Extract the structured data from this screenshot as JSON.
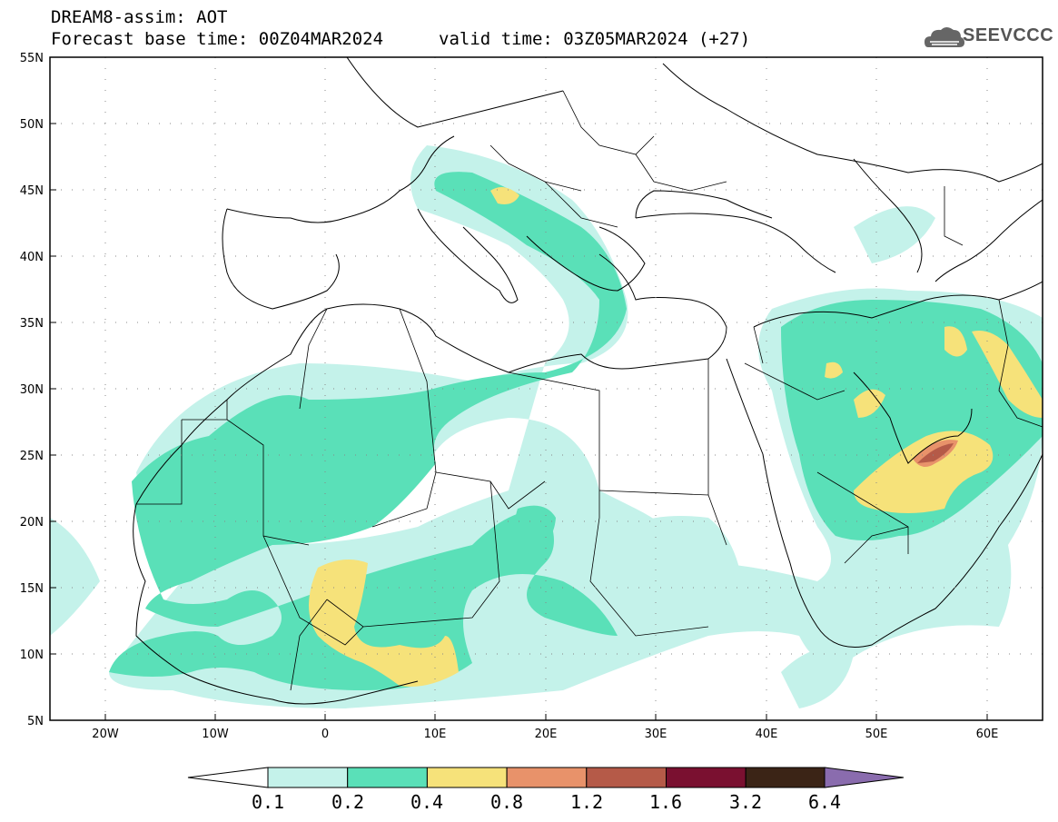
{
  "header": {
    "title": "DREAM8-assim: AOT",
    "base_time": "Forecast base time: 00Z04MAR2024",
    "valid_time": "valid time: 03Z05MAR2024 (+27)"
  },
  "logo": {
    "text": "SEEVCCC",
    "icon": "cloud-icon",
    "color": "#555555"
  },
  "map": {
    "lat_labels": [
      "55N",
      "50N",
      "45N",
      "40N",
      "35N",
      "30N",
      "25N",
      "20N",
      "15N",
      "10N",
      "5N"
    ],
    "lon_labels": [
      "20W",
      "10W",
      "0",
      "10E",
      "20E",
      "30E",
      "40E",
      "50E",
      "60E"
    ],
    "lon_range": [
      -25,
      65
    ],
    "lat_range": [
      5,
      55
    ],
    "grid": "dotted"
  },
  "colorbar": {
    "levels": [
      "0.1",
      "0.2",
      "0.4",
      "0.8",
      "1.2",
      "1.6",
      "3.2",
      "6.4"
    ],
    "colors": [
      "#c4f2ea",
      "#5ae0b8",
      "#f6e27a",
      "#e8926a",
      "#b55a48",
      "#7a1030",
      "#3b2416",
      "#8a6cae"
    ],
    "under_color": "#ffffff"
  }
}
